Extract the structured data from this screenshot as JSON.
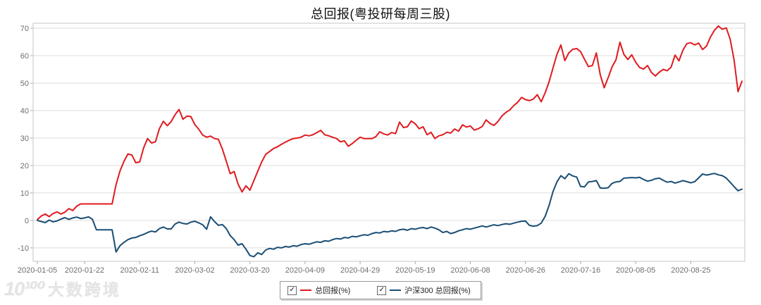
{
  "title": "总回报(粤投研每周三股)",
  "watermark": {
    "logo": "10¹⁰⁰",
    "brand": "大数跨境"
  },
  "legend": {
    "check_glyph": "✓",
    "items": [
      {
        "label": "总回报(%)",
        "color": "#e01b1f",
        "checked": true
      },
      {
        "label": "沪深300 总回报(%)",
        "color": "#1a4e74",
        "checked": true
      }
    ]
  },
  "chart_data": {
    "type": "line",
    "title": "总回报(粤投研每周三股)",
    "xlabel": "",
    "ylabel": "",
    "grid": "horizontal-only",
    "legend_position": "bottom-center",
    "ylim": [
      -14.9,
      71.8
    ],
    "y_ticks": [
      70,
      60,
      50,
      40,
      30,
      20,
      10,
      0,
      -10
    ],
    "x_labels": [
      "2020-01-05",
      "2020-01-22",
      "2020-02-11",
      "2020-03-02",
      "2020-03-20",
      "2020-04-09",
      "2020-04-29",
      "2020-05-19",
      "2020-06-08",
      "2020-06-26",
      "2020-07-16",
      "2020-08-05",
      "2020-08-25"
    ],
    "x_label_indices": [
      0,
      12,
      26,
      40,
      54,
      68,
      82,
      96,
      110,
      124,
      138,
      152,
      166
    ],
    "series": [
      {
        "name": "总回报(%)",
        "color": "#e01b1f",
        "values": [
          0.3,
          1.6,
          2.3,
          1.4,
          2.5,
          3.1,
          2.3,
          3.0,
          4.3,
          3.6,
          5.2,
          6.0,
          6.0,
          6.0,
          6.0,
          6.0,
          6.0,
          6.0,
          6.0,
          6.0,
          13.0,
          18.0,
          21.5,
          24.2,
          23.8,
          21.0,
          21.3,
          26.4,
          29.8,
          28.2,
          28.6,
          33.4,
          36.1,
          34.5,
          36.0,
          38.5,
          40.4,
          36.8,
          38.0,
          37.8,
          34.9,
          33.2,
          31.1,
          30.3,
          30.7,
          29.8,
          29.5,
          26.0,
          21.5,
          17.0,
          17.8,
          13.2,
          10.4,
          12.6,
          11.0,
          14.5,
          17.9,
          21.3,
          24.0,
          25.1,
          26.2,
          26.8,
          27.7,
          28.5,
          29.2,
          29.8,
          30.0,
          30.3,
          31.1,
          30.8,
          31.2,
          32.0,
          32.8,
          31.2,
          30.8,
          30.3,
          29.8,
          28.6,
          29.0,
          27.0,
          28.0,
          29.2,
          30.3,
          29.8,
          29.8,
          29.8,
          30.5,
          32.3,
          31.5,
          31.1,
          32.0,
          31.6,
          35.8,
          33.8,
          34.1,
          36.2,
          35.2,
          33.4,
          34.1,
          31.2,
          32.1,
          29.8,
          30.8,
          31.2,
          32.1,
          31.8,
          33.3,
          32.5,
          34.8,
          34.0,
          34.4,
          32.9,
          33.4,
          34.2,
          36.6,
          35.3,
          34.6,
          36.0,
          38.0,
          39.3,
          40.2,
          41.8,
          43.0,
          44.8,
          44.0,
          43.6,
          44.2,
          45.8,
          43.2,
          46.5,
          50.5,
          55.5,
          60.5,
          63.9,
          58.2,
          61.0,
          62.3,
          62.6,
          61.5,
          58.7,
          56.0,
          56.4,
          61.0,
          53.0,
          48.3,
          52.0,
          55.9,
          58.5,
          64.9,
          60.5,
          58.6,
          60.3,
          57.6,
          55.7,
          55.1,
          56.4,
          53.9,
          52.6,
          54.0,
          55.0,
          54.5,
          55.8,
          60.2,
          58.1,
          62.0,
          64.4,
          64.7,
          63.9,
          64.6,
          62.2,
          63.5,
          66.8,
          69.2,
          70.8,
          69.6,
          70.1,
          66.0,
          58.5,
          46.9,
          50.7
        ]
      },
      {
        "name": "沪深300 总回报(%)",
        "color": "#1a4e74",
        "values": [
          0.0,
          -0.4,
          -0.8,
          0.1,
          -0.5,
          -0.2,
          0.5,
          1.0,
          0.4,
          0.9,
          1.2,
          0.7,
          0.9,
          1.3,
          0.4,
          -3.4,
          -3.4,
          -3.4,
          -3.4,
          -3.4,
          -11.5,
          -9.2,
          -8.0,
          -7.0,
          -6.4,
          -6.2,
          -5.6,
          -5.1,
          -4.4,
          -3.9,
          -4.2,
          -3.0,
          -2.4,
          -3.1,
          -3.1,
          -1.3,
          -0.6,
          -1.1,
          -1.3,
          -0.6,
          -0.3,
          -0.9,
          -1.6,
          -3.2,
          1.3,
          -0.4,
          -1.8,
          -1.5,
          -3.0,
          -5.5,
          -7.0,
          -9.0,
          -8.5,
          -10.5,
          -12.8,
          -13.2,
          -11.8,
          -12.4,
          -10.8,
          -10.2,
          -10.5,
          -9.8,
          -10.0,
          -9.5,
          -9.7,
          -9.2,
          -9.4,
          -8.8,
          -8.5,
          -8.7,
          -8.2,
          -7.8,
          -8.0,
          -7.4,
          -7.6,
          -7.0,
          -6.6,
          -6.8,
          -6.2,
          -6.4,
          -5.8,
          -6.0,
          -5.6,
          -5.2,
          -5.4,
          -4.8,
          -4.4,
          -4.6,
          -4.0,
          -4.2,
          -3.8,
          -4.0,
          -3.4,
          -3.2,
          -3.6,
          -3.0,
          -3.2,
          -2.8,
          -2.6,
          -3.0,
          -2.4,
          -2.8,
          -3.4,
          -4.4,
          -4.0,
          -4.8,
          -4.4,
          -3.8,
          -3.4,
          -3.0,
          -3.2,
          -2.8,
          -2.4,
          -2.0,
          -2.4,
          -2.0,
          -1.6,
          -1.9,
          -1.5,
          -1.2,
          -1.4,
          -1.0,
          -0.6,
          -0.3,
          -0.2,
          -1.8,
          -2.1,
          -1.9,
          -1.0,
          1.5,
          5.5,
          10.5,
          14.0,
          16.3,
          15.2,
          17.0,
          16.2,
          15.8,
          12.4,
          12.2,
          14.0,
          14.2,
          14.5,
          11.8,
          11.7,
          11.9,
          13.5,
          14.0,
          14.2,
          15.4,
          15.5,
          15.6,
          15.5,
          15.7,
          14.9,
          14.3,
          14.6,
          15.2,
          15.4,
          14.6,
          13.9,
          14.2,
          13.6,
          14.0,
          14.5,
          14.1,
          13.7,
          14.1,
          15.5,
          16.9,
          16.5,
          16.8,
          17.1,
          16.6,
          16.3,
          15.4,
          13.9,
          12.3,
          10.8,
          11.4
        ]
      }
    ]
  }
}
